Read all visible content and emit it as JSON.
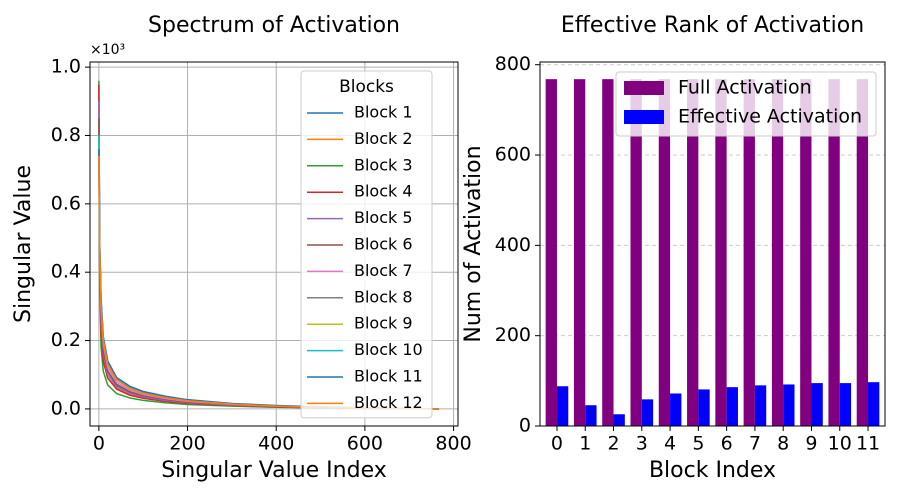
{
  "chart_data": [
    {
      "type": "line",
      "title": "Spectrum of Activation",
      "x_label": "Singular Value Index",
      "y_label": "Singular Value",
      "y_offset_label": "×10³",
      "x": [
        0,
        2,
        5,
        10,
        20,
        40,
        70,
        100,
        150,
        200,
        300,
        400,
        500,
        600,
        700,
        767
      ],
      "xlim": [
        -20,
        810
      ],
      "xticks": [
        0,
        200,
        400,
        600,
        800
      ],
      "ylim": [
        -0.05,
        1.015
      ],
      "yticks": [
        {
          "value": 0,
          "label": "0.0"
        },
        0.2,
        0.4,
        0.6,
        0.8,
        {
          "value": 1,
          "label": "1.0"
        }
      ],
      "grid": "both",
      "legend_title": "Blocks",
      "legend": "upper right",
      "series": [
        {
          "name": "Block 1",
          "color": "#1f77b4",
          "values": [
            0.75,
            0.42,
            0.26,
            0.17,
            0.11,
            0.07,
            0.05,
            0.038,
            0.027,
            0.02,
            0.012,
            0.007,
            0.004,
            0.002,
            0.001,
            0
          ]
        },
        {
          "name": "Block 2",
          "color": "#ff7f0e",
          "values": [
            0.74,
            0.38,
            0.22,
            0.14,
            0.09,
            0.06,
            0.042,
            0.032,
            0.023,
            0.017,
            0.01,
            0.006,
            0.003,
            0.002,
            0.001,
            0
          ]
        },
        {
          "name": "Block 3",
          "color": "#2ca02c",
          "values": [
            0.96,
            0.35,
            0.18,
            0.11,
            0.07,
            0.045,
            0.032,
            0.025,
            0.018,
            0.013,
            0.008,
            0.005,
            0.003,
            0.001,
            0.001,
            0
          ]
        },
        {
          "name": "Block 4",
          "color": "#d62728",
          "values": [
            0.95,
            0.4,
            0.22,
            0.14,
            0.09,
            0.058,
            0.04,
            0.031,
            0.022,
            0.016,
            0.01,
            0.006,
            0.003,
            0.002,
            0.001,
            0
          ]
        },
        {
          "name": "Block 5",
          "color": "#9467bd",
          "values": [
            0.9,
            0.42,
            0.25,
            0.16,
            0.1,
            0.065,
            0.046,
            0.035,
            0.025,
            0.018,
            0.011,
            0.007,
            0.004,
            0.002,
            0.001,
            0
          ]
        },
        {
          "name": "Block 6",
          "color": "#8c564b",
          "values": [
            0.85,
            0.44,
            0.27,
            0.17,
            0.11,
            0.072,
            0.05,
            0.039,
            0.028,
            0.02,
            0.012,
            0.007,
            0.004,
            0.002,
            0.001,
            0
          ]
        },
        {
          "name": "Block 7",
          "color": "#e377c2",
          "values": [
            0.8,
            0.45,
            0.29,
            0.19,
            0.12,
            0.078,
            0.055,
            0.042,
            0.03,
            0.022,
            0.013,
            0.008,
            0.005,
            0.003,
            0.001,
            0
          ]
        },
        {
          "name": "Block 8",
          "color": "#7f7f7f",
          "values": [
            0.8,
            0.47,
            0.31,
            0.2,
            0.13,
            0.085,
            0.06,
            0.046,
            0.033,
            0.024,
            0.014,
            0.009,
            0.005,
            0.003,
            0.001,
            0
          ]
        },
        {
          "name": "Block 9",
          "color": "#bcbd22",
          "values": [
            0.78,
            0.47,
            0.31,
            0.2,
            0.13,
            0.087,
            0.062,
            0.048,
            0.034,
            0.025,
            0.015,
            0.009,
            0.005,
            0.003,
            0.001,
            0
          ]
        },
        {
          "name": "Block 10",
          "color": "#17becf",
          "values": [
            0.8,
            0.48,
            0.32,
            0.21,
            0.14,
            0.09,
            0.064,
            0.05,
            0.036,
            0.026,
            0.015,
            0.009,
            0.005,
            0.003,
            0.001,
            0
          ]
        },
        {
          "name": "Block 11",
          "color": "#1f77b4",
          "values": [
            0.76,
            0.48,
            0.32,
            0.21,
            0.14,
            0.092,
            0.066,
            0.051,
            0.037,
            0.027,
            0.016,
            0.01,
            0.006,
            0.003,
            0.001,
            0
          ]
        },
        {
          "name": "Block 12",
          "color": "#ff7f0e",
          "values": [
            0.74,
            0.46,
            0.3,
            0.2,
            0.13,
            0.085,
            0.06,
            0.046,
            0.033,
            0.024,
            0.014,
            0.008,
            0.005,
            0.003,
            0.001,
            0
          ]
        }
      ]
    },
    {
      "type": "bar",
      "title": "Effective Rank of Activation",
      "x_label": "Block Index",
      "y_label": "Num of Activation",
      "categories": [
        "0",
        "1",
        "2",
        "3",
        "4",
        "5",
        "6",
        "7",
        "8",
        "9",
        "10",
        "11"
      ],
      "ylim": [
        0,
        806
      ],
      "yticks": [
        0,
        200,
        400,
        600,
        800
      ],
      "grid": "y",
      "legend": "upper right",
      "series": [
        {
          "name": "Full Activation",
          "color": "#800080",
          "values": [
            768,
            768,
            768,
            768,
            768,
            768,
            768,
            768,
            768,
            768,
            768,
            768
          ]
        },
        {
          "name": "Effective Activation",
          "color": "#0000ff",
          "values": [
            88,
            46,
            26,
            59,
            72,
            81,
            86,
            90,
            92,
            95,
            95,
            97
          ]
        }
      ]
    }
  ]
}
